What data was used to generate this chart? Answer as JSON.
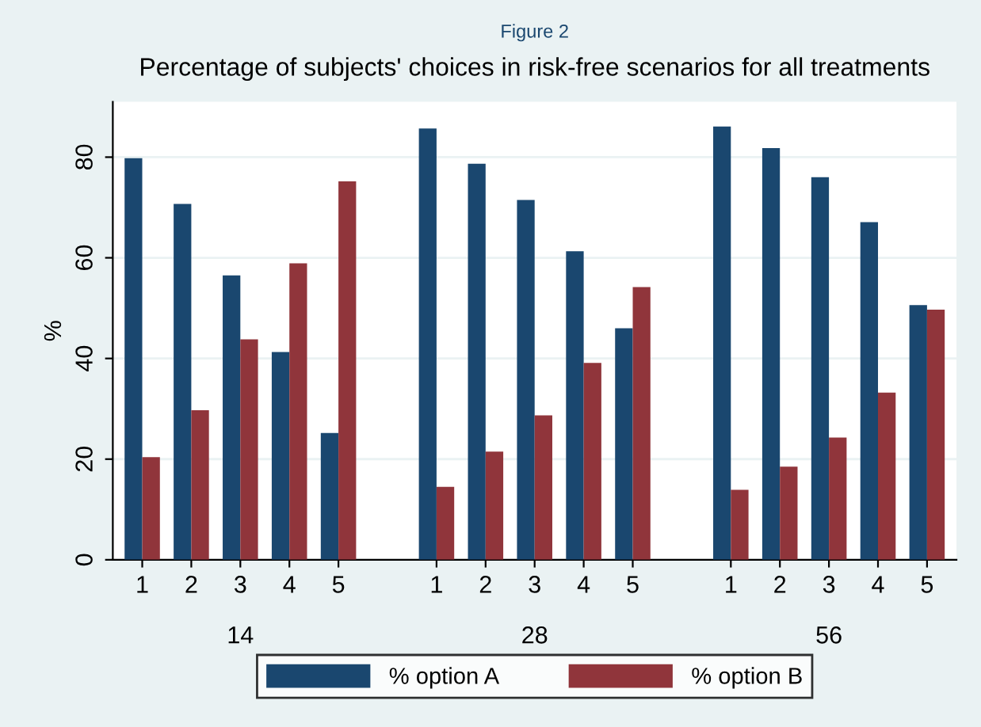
{
  "chart_data": {
    "type": "bar",
    "title": "Figure 2",
    "subtitle": "Percentage of subjects' choices in risk-free scenarios for all treatments",
    "ylabel": "%",
    "categories": [
      "1",
      "2",
      "3",
      "4",
      "5",
      null,
      "1",
      "2",
      "3",
      "4",
      "5",
      null,
      "1",
      "2",
      "3",
      "4",
      "5"
    ],
    "series": [
      {
        "name": "% option A",
        "color": "#1a476f",
        "values": [
          79.8,
          70.7,
          56.5,
          41.3,
          25.2,
          null,
          85.7,
          78.7,
          71.5,
          61.3,
          46,
          null,
          86.1,
          81.8,
          76,
          67.1,
          50.6
        ]
      },
      {
        "name": "% option B",
        "color": "#90353b",
        "values": [
          20.4,
          29.7,
          43.8,
          58.9,
          75.2,
          null,
          14.5,
          21.5,
          28.7,
          39.1,
          54.2,
          null,
          13.9,
          18.5,
          24.3,
          33.2,
          49.7
        ]
      }
    ],
    "annotations": [
      "14",
      "28",
      "56"
    ],
    "ylim": [
      0,
      91
    ],
    "yticks": [
      0,
      20,
      40,
      60,
      80
    ],
    "grid": "y",
    "legend": "bottom"
  }
}
